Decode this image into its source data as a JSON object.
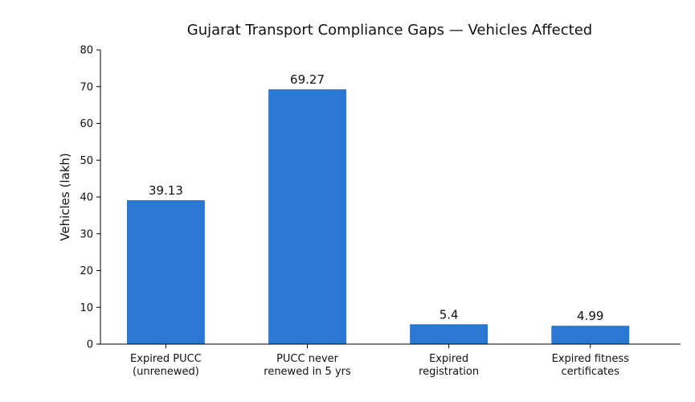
{
  "chart_data": {
    "type": "bar",
    "title": "Gujarat Transport Compliance Gaps — Vehicles Affected",
    "xlabel": "",
    "ylabel": "Vehicles (lakh)",
    "ylim": [
      0,
      80
    ],
    "yticks": [
      0,
      10,
      20,
      30,
      40,
      50,
      60,
      70,
      80
    ],
    "categories": [
      [
        "Expired PUCC",
        "(unrenewed)"
      ],
      [
        "PUCC never",
        "renewed in 5 yrs"
      ],
      [
        "Expired",
        "registration"
      ],
      [
        "Expired fitness",
        "certificates"
      ]
    ],
    "values": [
      39.13,
      69.27,
      5.4,
      4.99
    ],
    "value_labels": [
      "39.13",
      "69.27",
      "5.4",
      "4.99"
    ],
    "bar_color": "#2a77d4",
    "grid": false,
    "legend": "none"
  }
}
